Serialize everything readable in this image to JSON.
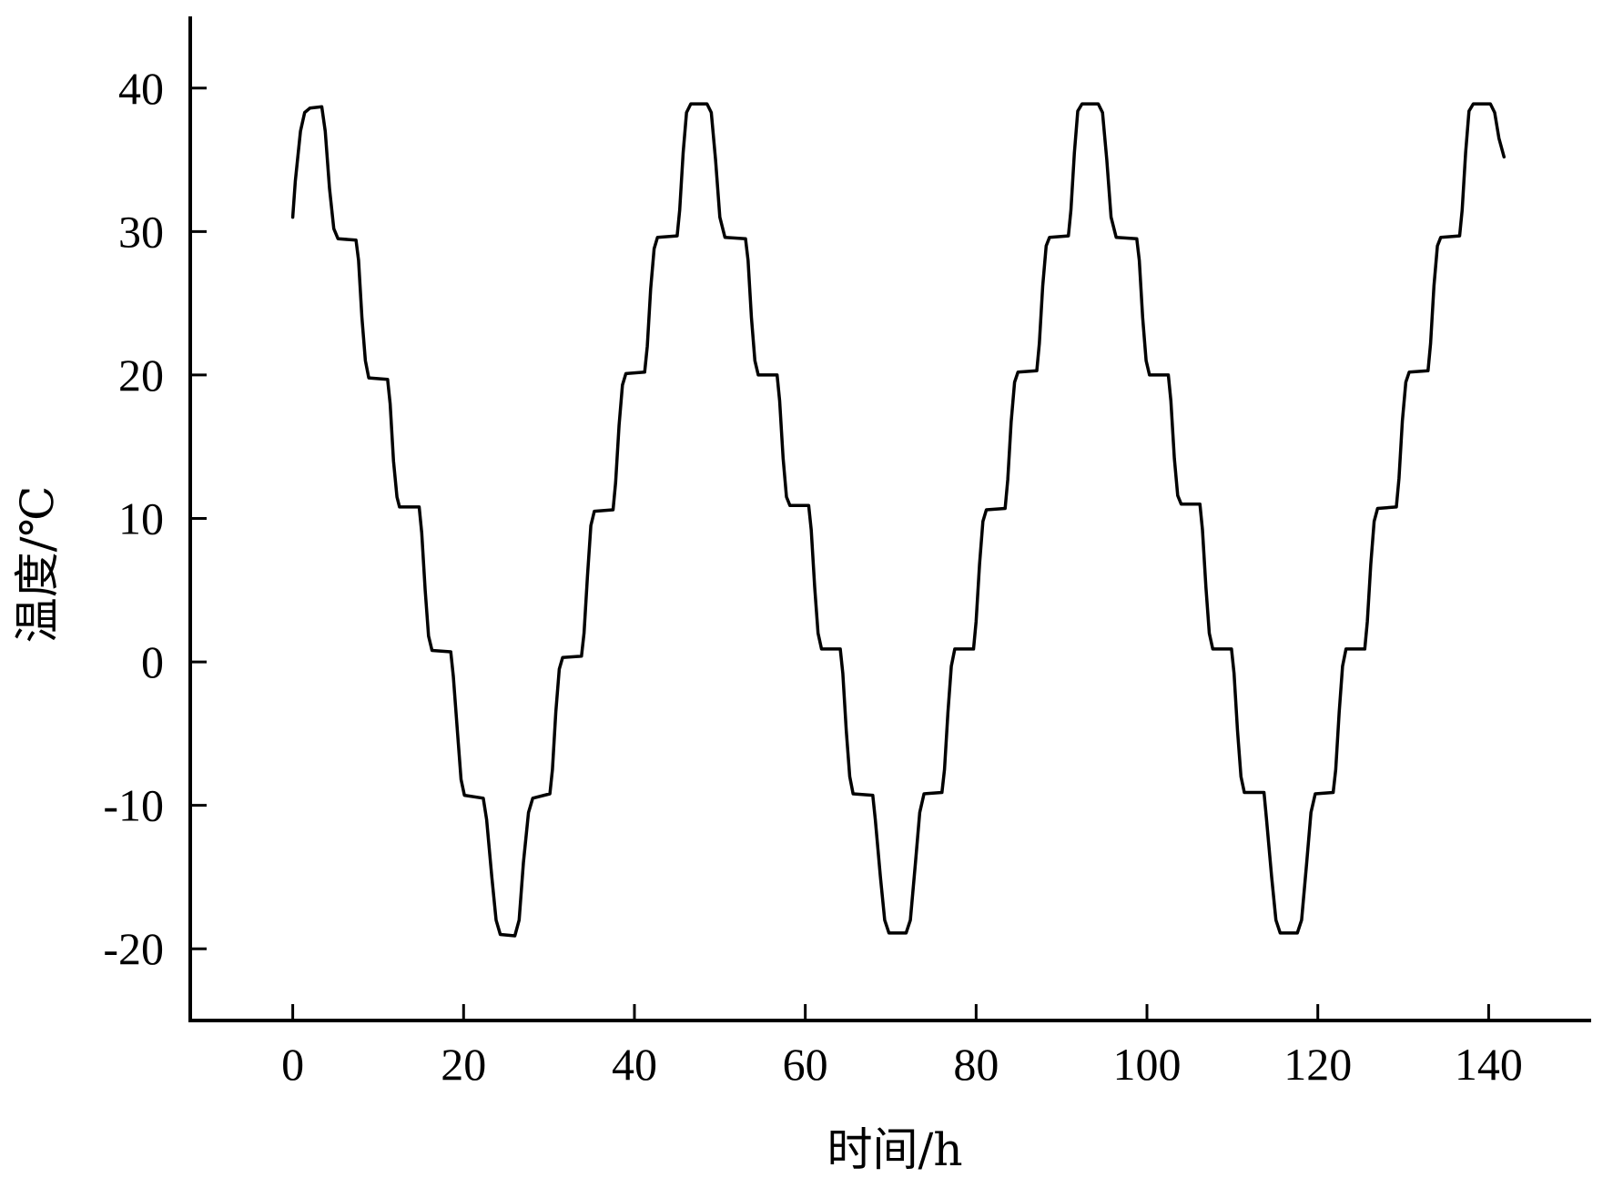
{
  "chart_data": {
    "type": "line",
    "title": "",
    "xlabel": "时间/h",
    "ylabel": "温度/℃",
    "xlim": [
      -12,
      152
    ],
    "ylim": [
      -25,
      45
    ],
    "xticks": [
      0,
      20,
      40,
      60,
      80,
      100,
      120,
      140
    ],
    "xtick_labels": [
      "0",
      "20",
      "40",
      "60",
      "80",
      "100",
      "120",
      "140"
    ],
    "yticks": [
      -20,
      -10,
      0,
      10,
      20,
      30,
      40
    ],
    "ytick_labels": [
      "-20",
      "-10",
      "0",
      "10",
      "20",
      "30",
      "40"
    ],
    "grid": false,
    "line_color": "#000000",
    "series": [
      {
        "x": [
          0,
          0.3,
          0.9,
          1.4,
          2.0,
          3.4,
          3.8,
          4.3,
          4.8,
          5.3,
          7.4,
          7.7,
          8.1,
          8.5,
          8.9,
          11.1,
          11.4,
          11.8,
          12.2,
          12.5,
          14.8,
          15.1,
          15.5,
          15.9,
          16.3,
          18.5,
          18.8,
          19.3,
          19.7,
          20.1,
          22.3,
          22.7,
          23.3,
          23.8,
          24.3,
          26.0,
          26.5,
          27.0,
          27.6,
          28.1,
          30.1,
          30.4,
          30.8,
          31.2,
          31.6,
          33.8,
          34.1,
          34.5,
          34.9,
          35.3,
          37.5,
          37.8,
          38.2,
          38.6,
          39.0,
          41.2,
          41.5,
          41.9,
          42.3,
          42.7,
          45.0,
          45.3,
          45.7,
          46.1,
          46.6,
          48.5,
          49.0,
          49.5,
          50.0,
          50.6,
          53.0,
          53.3,
          53.7,
          54.1,
          54.5,
          56.7,
          57.0,
          57.4,
          57.8,
          58.2,
          60.4,
          60.7,
          61.1,
          61.5,
          61.9,
          64.1,
          64.4,
          64.8,
          65.2,
          65.6,
          67.9,
          68.2,
          68.8,
          69.3,
          69.8,
          71.8,
          72.3,
          72.9,
          73.4,
          73.9,
          76.0,
          76.3,
          76.7,
          77.1,
          77.5,
          79.7,
          80.0,
          80.4,
          80.8,
          81.2,
          83.4,
          83.7,
          84.1,
          84.5,
          84.9,
          87.1,
          87.4,
          87.8,
          88.2,
          88.6,
          90.8,
          91.1,
          91.5,
          91.9,
          92.4,
          94.3,
          94.8,
          95.3,
          95.8,
          96.4,
          98.8,
          99.1,
          99.5,
          99.9,
          100.3,
          102.5,
          102.8,
          103.2,
          103.6,
          104.0,
          106.2,
          106.5,
          106.9,
          107.3,
          107.7,
          109.9,
          110.2,
          110.6,
          111.0,
          111.4,
          113.7,
          114.0,
          114.6,
          115.1,
          115.6,
          117.6,
          118.1,
          118.7,
          119.2,
          119.7,
          121.8,
          122.1,
          122.5,
          122.9,
          123.3,
          125.5,
          125.8,
          126.2,
          126.6,
          127.0,
          129.2,
          129.5,
          129.9,
          130.3,
          130.7,
          132.9,
          133.2,
          133.6,
          134.0,
          134.4,
          136.6,
          136.9,
          137.3,
          137.7,
          138.2,
          140.2,
          140.7,
          141.2,
          141.8
        ],
        "y": [
          31.0,
          33.5,
          37.0,
          38.3,
          38.6,
          38.7,
          37.0,
          33.0,
          30.2,
          29.5,
          29.4,
          28.0,
          24.0,
          21.0,
          19.8,
          19.7,
          18.0,
          14.0,
          11.5,
          10.8,
          10.8,
          9.0,
          5.0,
          1.8,
          0.8,
          0.7,
          -1.0,
          -5.0,
          -8.2,
          -9.3,
          -9.5,
          -11.0,
          -15.0,
          -18.0,
          -19.0,
          -19.1,
          -18.0,
          -14.0,
          -10.5,
          -9.5,
          -9.2,
          -7.5,
          -3.5,
          -0.5,
          0.3,
          0.4,
          2.0,
          6.0,
          9.5,
          10.5,
          10.6,
          12.5,
          16.5,
          19.3,
          20.1,
          20.2,
          22.0,
          26.0,
          28.8,
          29.6,
          29.7,
          31.5,
          35.5,
          38.3,
          38.9,
          38.9,
          38.3,
          35.0,
          31.0,
          29.6,
          29.5,
          28.0,
          24.0,
          21.0,
          20.0,
          20.0,
          18.2,
          14.2,
          11.5,
          10.9,
          10.9,
          9.2,
          5.2,
          2.0,
          0.9,
          0.9,
          -0.8,
          -4.8,
          -8.0,
          -9.2,
          -9.3,
          -11.0,
          -15.0,
          -18.0,
          -18.9,
          -18.9,
          -18.0,
          -14.0,
          -10.5,
          -9.2,
          -9.1,
          -7.5,
          -3.5,
          -0.3,
          0.9,
          0.9,
          2.8,
          6.8,
          9.8,
          10.6,
          10.7,
          12.7,
          16.7,
          19.5,
          20.2,
          20.3,
          22.2,
          26.2,
          29.0,
          29.6,
          29.7,
          31.5,
          35.5,
          38.4,
          38.9,
          38.9,
          38.3,
          35.0,
          31.0,
          29.6,
          29.5,
          28.0,
          24.0,
          21.0,
          20.0,
          20.0,
          18.2,
          14.2,
          11.6,
          11.0,
          11.0,
          9.2,
          5.2,
          2.0,
          0.9,
          0.9,
          -0.8,
          -4.8,
          -8.0,
          -9.1,
          -9.1,
          -11.0,
          -15.0,
          -18.0,
          -18.9,
          -18.9,
          -18.0,
          -14.0,
          -10.5,
          -9.2,
          -9.1,
          -7.5,
          -3.5,
          -0.3,
          0.9,
          0.9,
          2.8,
          6.8,
          9.8,
          10.7,
          10.8,
          12.8,
          16.8,
          19.5,
          20.2,
          20.3,
          22.2,
          26.2,
          29.0,
          29.6,
          29.7,
          31.5,
          35.5,
          38.4,
          38.9,
          38.9,
          38.3,
          36.5,
          35.2
        ]
      }
    ]
  }
}
